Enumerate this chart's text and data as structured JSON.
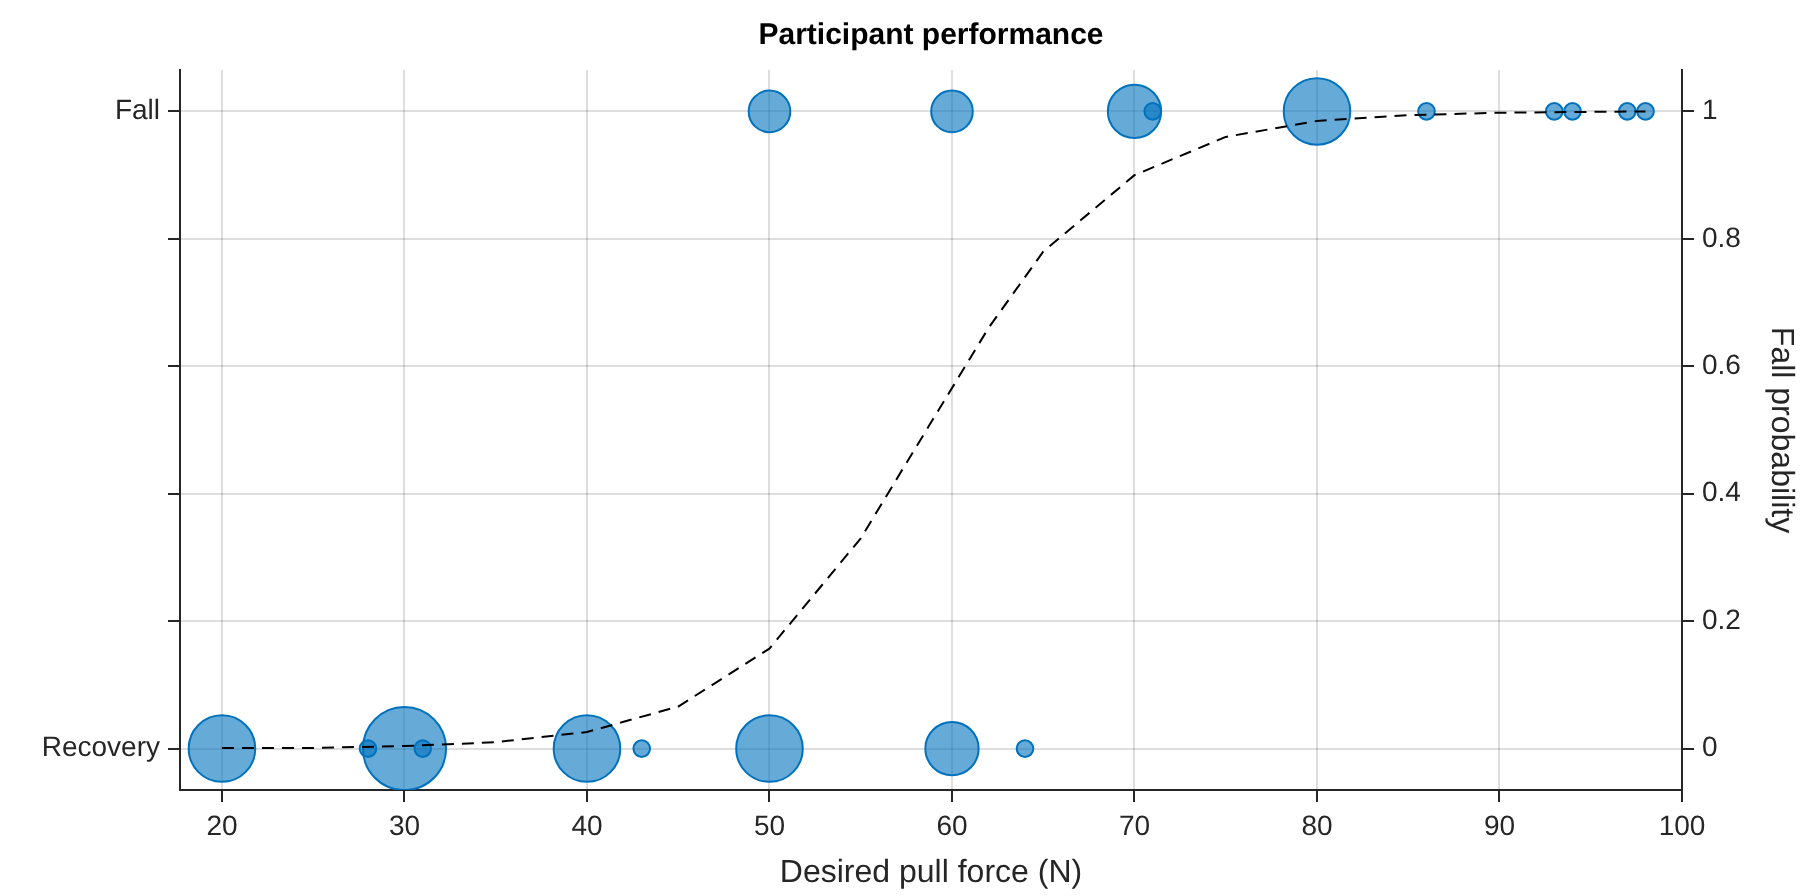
{
  "chart_data": {
    "type": "bubble",
    "title": "Participant performance",
    "xlabel": "Desired pull force (N)",
    "y2label": "Fall probability",
    "xlim": [
      17.7,
      100
    ],
    "xticks": [
      20,
      30,
      40,
      50,
      60,
      70,
      80,
      90,
      100
    ],
    "y_categories": [
      "Fall",
      "Recovery"
    ],
    "y2lim": [
      -0.065,
      1.065
    ],
    "y2ticks": [
      0,
      0.2,
      0.4,
      0.6,
      0.8,
      1
    ],
    "grid": true,
    "legend": false,
    "series": [
      {
        "axis": "y2",
        "color": "#0072bd",
        "x": [
          20,
          28,
          30,
          31,
          40,
          43,
          50,
          60,
          64,
          50,
          60,
          70,
          71,
          80,
          86,
          93,
          94,
          97,
          98
        ],
        "values": [
          0,
          0,
          0,
          0,
          0,
          0,
          0,
          0,
          0,
          1,
          1,
          1,
          1,
          1,
          1,
          1,
          1,
          1,
          1
        ],
        "sizes": [
          0.64,
          0.04,
          1,
          0.04,
          0.64,
          0.04,
          0.64,
          0.41,
          0.04,
          0.25,
          0.25,
          0.41,
          0.04,
          0.64,
          0.04,
          0.04,
          0.04,
          0.04,
          0.04
        ]
      },
      {
        "type": "line",
        "axis": "y2",
        "color": "#000000",
        "line_style": "dashed",
        "marker": "none",
        "x": [
          20,
          25,
          30,
          35,
          40,
          45,
          50,
          55,
          58.6,
          62,
          65,
          70,
          75,
          80,
          85,
          90,
          98
        ],
        "values": [
          0.001,
          0.001,
          0.004,
          0.01,
          0.026,
          0.066,
          0.157,
          0.33,
          0.5,
          0.66,
          0.78,
          0.9,
          0.96,
          0.985,
          0.994,
          0.998,
          1.0
        ]
      }
    ]
  }
}
